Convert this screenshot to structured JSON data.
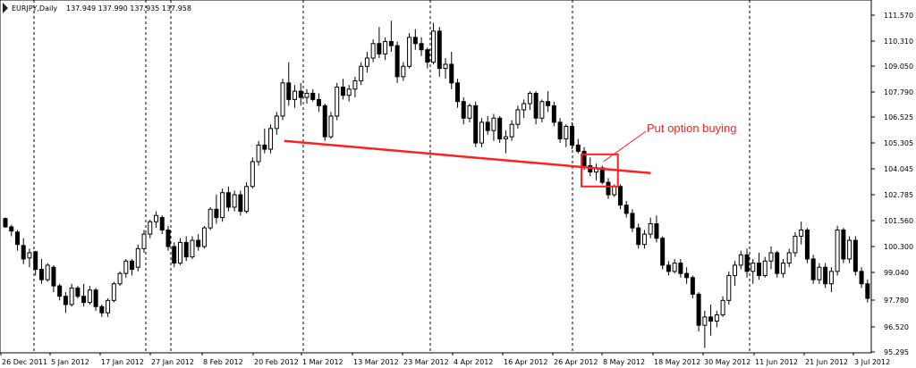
{
  "header": {
    "symbol_label": "EURJPY,Daily",
    "ohlc_label": "137.949 137.990 137.935 137.958"
  },
  "colors": {
    "background": "#ffffff",
    "candle": "#000000",
    "grid": "#000000",
    "annotation": "#ff2020"
  },
  "chart_data": {
    "type": "candlestick",
    "title": "",
    "symbol": "EURJPY",
    "timeframe": "Daily",
    "ylim": [
      95.3,
      112.2
    ],
    "y_ticks": [
      "111.570",
      "110.310",
      "109.050",
      "107.790",
      "106.525",
      "105.305",
      "104.045",
      "102.785",
      "101.560",
      "100.300",
      "99.040",
      "97.780",
      "96.520",
      "95.295"
    ],
    "x_ticks": [
      "26 Dec 2011",
      "5 Jan 2012",
      "17 Jan 2012",
      "27 Jan 2012",
      "8 Feb 2012",
      "20 Feb 2012",
      "1 Mar 2012",
      "13 Mar 2012",
      "23 Mar 2012",
      "4 Apr 2012",
      "16 Apr 2012",
      "26 Apr 2012",
      "8 May 2012",
      "18 May 2012",
      "30 May 2012",
      "11 Jun 2012",
      "21 Jun 2012",
      "3 Jul 2012"
    ],
    "grid": "dashed vertical lines",
    "candles": [
      [
        101.75,
        101.8,
        101.3,
        101.35
      ],
      [
        101.35,
        101.45,
        100.9,
        101.15
      ],
      [
        101.1,
        101.2,
        100.2,
        100.5
      ],
      [
        100.45,
        100.8,
        99.55,
        99.8
      ],
      [
        99.85,
        100.3,
        99.4,
        100.1
      ],
      [
        100.15,
        100.2,
        99.0,
        99.3
      ],
      [
        99.3,
        99.8,
        98.6,
        98.8
      ],
      [
        98.8,
        99.6,
        98.7,
        99.5
      ],
      [
        99.4,
        99.5,
        98.2,
        98.5
      ],
      [
        98.5,
        98.6,
        97.8,
        98.0
      ],
      [
        98.0,
        98.2,
        97.2,
        97.6
      ],
      [
        97.6,
        98.6,
        97.5,
        98.4
      ],
      [
        98.4,
        98.5,
        97.9,
        98.0
      ],
      [
        98.0,
        98.6,
        97.5,
        97.7
      ],
      [
        97.7,
        98.5,
        97.6,
        98.3
      ],
      [
        98.3,
        98.4,
        97.3,
        97.5
      ],
      [
        97.5,
        97.6,
        97.0,
        97.2
      ],
      [
        97.2,
        97.9,
        97.0,
        97.8
      ],
      [
        97.8,
        98.7,
        97.7,
        98.6
      ],
      [
        98.6,
        99.2,
        98.5,
        99.1
      ],
      [
        99.1,
        99.8,
        98.9,
        99.7
      ],
      [
        99.7,
        99.8,
        99.0,
        99.3
      ],
      [
        99.4,
        100.5,
        99.2,
        100.3
      ],
      [
        100.3,
        101.2,
        100.1,
        101.0
      ],
      [
        101.0,
        101.7,
        100.8,
        101.6
      ],
      [
        101.6,
        102.1,
        101.3,
        101.9
      ],
      [
        101.8,
        101.9,
        101.0,
        101.2
      ],
      [
        101.2,
        101.4,
        100.2,
        100.4
      ],
      [
        100.4,
        100.6,
        99.4,
        99.6
      ],
      [
        99.6,
        100.8,
        99.5,
        100.6
      ],
      [
        100.6,
        100.9,
        99.7,
        99.9
      ],
      [
        99.9,
        100.9,
        99.8,
        100.7
      ],
      [
        100.7,
        101.0,
        100.2,
        100.4
      ],
      [
        100.4,
        101.4,
        100.3,
        101.3
      ],
      [
        101.3,
        102.3,
        101.2,
        102.2
      ],
      [
        102.2,
        102.9,
        101.5,
        101.8
      ],
      [
        101.8,
        103.2,
        101.6,
        103.0
      ],
      [
        103.0,
        103.3,
        102.1,
        102.3
      ],
      [
        102.3,
        103.1,
        102.1,
        102.9
      ],
      [
        102.9,
        103.1,
        101.9,
        102.1
      ],
      [
        102.1,
        103.5,
        102.0,
        103.3
      ],
      [
        103.3,
        104.7,
        103.2,
        104.5
      ],
      [
        104.5,
        105.5,
        104.3,
        105.3
      ],
      [
        105.3,
        106.1,
        104.9,
        105.1
      ],
      [
        105.1,
        106.3,
        104.9,
        106.1
      ],
      [
        106.1,
        106.9,
        105.8,
        106.7
      ],
      [
        106.7,
        108.5,
        106.5,
        108.3
      ],
      [
        108.3,
        109.3,
        107.2,
        107.5
      ],
      [
        107.5,
        108.2,
        107.1,
        107.9
      ],
      [
        107.9,
        108.3,
        107.2,
        107.6
      ],
      [
        107.6,
        108.0,
        107.3,
        107.8
      ],
      [
        107.8,
        108.0,
        107.4,
        107.5
      ],
      [
        107.5,
        107.8,
        106.9,
        107.2
      ],
      [
        107.2,
        107.3,
        105.5,
        105.7
      ],
      [
        105.7,
        106.9,
        105.6,
        106.7
      ],
      [
        106.7,
        108.3,
        106.5,
        108.1
      ],
      [
        108.1,
        108.5,
        107.5,
        107.7
      ],
      [
        107.7,
        108.2,
        107.4,
        108.0
      ],
      [
        108.0,
        108.6,
        107.6,
        108.4
      ],
      [
        108.4,
        109.3,
        108.2,
        109.1
      ],
      [
        109.1,
        109.8,
        108.8,
        109.5
      ],
      [
        109.5,
        110.4,
        109.3,
        110.2
      ],
      [
        110.2,
        111.0,
        109.5,
        109.7
      ],
      [
        109.7,
        110.5,
        109.4,
        110.3
      ],
      [
        110.3,
        111.3,
        109.8,
        110.1
      ],
      [
        110.1,
        110.3,
        108.3,
        108.6
      ],
      [
        108.6,
        109.3,
        108.4,
        109.1
      ],
      [
        109.1,
        110.7,
        109.0,
        110.5
      ],
      [
        110.5,
        110.9,
        109.9,
        110.2
      ],
      [
        110.2,
        110.5,
        109.6,
        109.9
      ],
      [
        109.9,
        110.0,
        109.0,
        109.3
      ],
      [
        109.3,
        111.2,
        109.2,
        110.8
      ],
      [
        110.8,
        111.0,
        108.6,
        109.0
      ],
      [
        109.0,
        109.5,
        108.5,
        109.2
      ],
      [
        109.2,
        109.8,
        108.0,
        108.3
      ],
      [
        108.3,
        108.5,
        107.1,
        107.4
      ],
      [
        107.4,
        107.6,
        106.3,
        106.6
      ],
      [
        106.6,
        107.3,
        106.4,
        107.2
      ],
      [
        107.2,
        107.4,
        105.2,
        105.4
      ],
      [
        105.4,
        106.6,
        105.2,
        106.4
      ],
      [
        106.4,
        106.7,
        105.8,
        106.0
      ],
      [
        106.0,
        106.8,
        105.5,
        106.6
      ],
      [
        106.6,
        106.7,
        105.4,
        105.6
      ],
      [
        105.6,
        106.0,
        104.9,
        105.7
      ],
      [
        105.7,
        106.5,
        105.5,
        106.3
      ],
      [
        106.3,
        107.2,
        106.1,
        107.0
      ],
      [
        107.0,
        107.5,
        106.6,
        107.3
      ],
      [
        107.3,
        107.9,
        107.0,
        107.8
      ],
      [
        107.8,
        107.9,
        106.3,
        106.6
      ],
      [
        106.6,
        107.5,
        106.4,
        107.4
      ],
      [
        107.4,
        107.9,
        106.9,
        107.2
      ],
      [
        107.2,
        107.4,
        106.2,
        106.4
      ],
      [
        106.4,
        106.6,
        105.4,
        105.6
      ],
      [
        105.6,
        106.3,
        105.2,
        106.2
      ],
      [
        106.2,
        106.4,
        105.1,
        105.3
      ],
      [
        105.3,
        105.6,
        104.9,
        105.0
      ],
      [
        105.0,
        105.2,
        104.1,
        104.3
      ],
      [
        104.3,
        104.7,
        103.8,
        104.0
      ],
      [
        104.0,
        104.4,
        103.6,
        104.2
      ],
      [
        104.2,
        104.3,
        103.4,
        103.5
      ],
      [
        103.5,
        103.7,
        102.7,
        102.9
      ],
      [
        102.9,
        103.4,
        102.8,
        103.3
      ],
      [
        103.3,
        103.4,
        102.2,
        102.4
      ],
      [
        102.4,
        102.6,
        101.8,
        102.0
      ],
      [
        102.0,
        102.2,
        101.1,
        101.3
      ],
      [
        101.3,
        101.5,
        100.3,
        100.5
      ],
      [
        100.5,
        101.2,
        100.3,
        101.0
      ],
      [
        101.0,
        101.8,
        100.8,
        101.5
      ],
      [
        101.5,
        101.9,
        100.6,
        100.8
      ],
      [
        100.8,
        100.9,
        99.3,
        99.5
      ],
      [
        99.5,
        99.7,
        99.0,
        99.2
      ],
      [
        99.2,
        99.8,
        99.1,
        99.6
      ],
      [
        99.6,
        99.8,
        98.9,
        99.1
      ],
      [
        99.1,
        99.4,
        98.6,
        98.9
      ],
      [
        98.9,
        99.0,
        97.9,
        98.1
      ],
      [
        98.1,
        98.2,
        96.3,
        96.6
      ],
      [
        96.6,
        97.3,
        95.5,
        97.0
      ],
      [
        97.0,
        97.6,
        96.1,
        96.8
      ],
      [
        96.8,
        97.3,
        96.5,
        97.1
      ],
      [
        97.1,
        98.0,
        97.0,
        97.8
      ],
      [
        97.8,
        99.2,
        97.6,
        99.0
      ],
      [
        99.0,
        99.7,
        98.5,
        99.5
      ],
      [
        99.5,
        100.2,
        99.3,
        100.0
      ],
      [
        100.0,
        100.3,
        98.9,
        99.2
      ],
      [
        99.2,
        99.8,
        98.6,
        99.6
      ],
      [
        99.6,
        100.1,
        98.8,
        99.0
      ],
      [
        99.0,
        99.9,
        98.9,
        99.7
      ],
      [
        99.7,
        100.4,
        99.3,
        100.1
      ],
      [
        100.1,
        100.2,
        98.9,
        99.1
      ],
      [
        99.1,
        99.8,
        98.9,
        99.6
      ],
      [
        99.6,
        100.3,
        99.4,
        100.1
      ],
      [
        100.1,
        101.1,
        99.9,
        100.9
      ],
      [
        100.9,
        101.6,
        100.5,
        101.2
      ],
      [
        101.2,
        101.3,
        99.6,
        99.8
      ],
      [
        99.8,
        100.0,
        98.6,
        98.8
      ],
      [
        98.8,
        99.6,
        98.6,
        99.4
      ],
      [
        99.4,
        99.6,
        98.4,
        98.6
      ],
      [
        98.6,
        99.4,
        98.2,
        99.2
      ],
      [
        99.2,
        101.4,
        99.0,
        101.2
      ],
      [
        101.2,
        101.3,
        99.6,
        99.8
      ],
      [
        99.8,
        100.9,
        99.6,
        100.7
      ],
      [
        100.7,
        100.9,
        99.0,
        99.2
      ],
      [
        99.2,
        99.4,
        98.4,
        98.6
      ],
      [
        98.6,
        98.8,
        97.7,
        97.9
      ]
    ],
    "trendline": {
      "from": {
        "index": 47,
        "price": 105.5
      },
      "to": {
        "index": 106,
        "price": 103.95
      }
    },
    "signal_box": {
      "index_from": 96,
      "index_to": 101,
      "price_high": 104.85,
      "price_low": 103.3
    },
    "annotations": [
      {
        "text": "Put option buying"
      }
    ]
  }
}
